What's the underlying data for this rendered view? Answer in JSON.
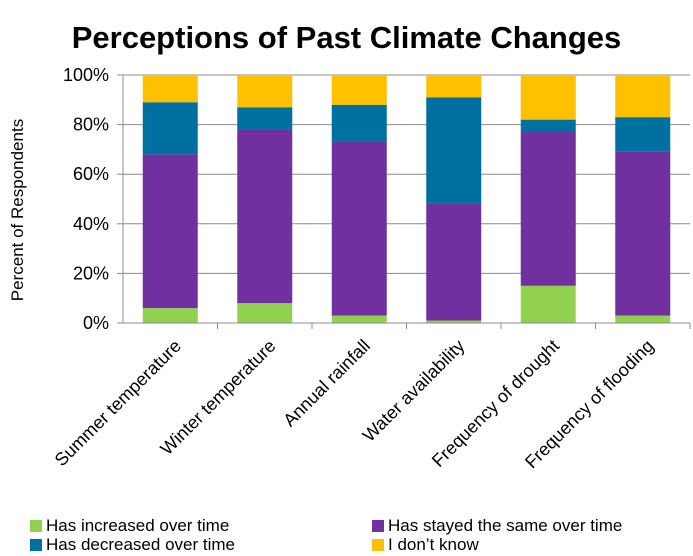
{
  "chart_data": {
    "type": "bar",
    "stacked": true,
    "title": "Perceptions of Past Climate Changes",
    "xlabel": "",
    "ylabel": "Percent of Respondents",
    "ylim": [
      0,
      100
    ],
    "yticks": [
      "0%",
      "20%",
      "40%",
      "60%",
      "80%",
      "100%"
    ],
    "grid": "horizontal",
    "legend_position": "bottom",
    "categories": [
      "Summer temperature",
      "Winter temperature",
      "Annual rainfall",
      "Water availability",
      "Frequency of drought",
      "Frequency of flooding"
    ],
    "series": [
      {
        "name": "Has increased over time",
        "color": "#92d050",
        "values": [
          6,
          8,
          3,
          1,
          15,
          3
        ]
      },
      {
        "name": "Has stayed the same  over time",
        "color": "#7030a0",
        "values": [
          62,
          70,
          70,
          47,
          62,
          66
        ]
      },
      {
        "name": "Has decreased over time",
        "color": "#0070a0",
        "values": [
          21,
          9,
          15,
          43,
          5,
          14
        ]
      },
      {
        "name": "I don’t know",
        "color": "#ffc000",
        "values": [
          11,
          13,
          12,
          9,
          18,
          17
        ]
      }
    ]
  }
}
